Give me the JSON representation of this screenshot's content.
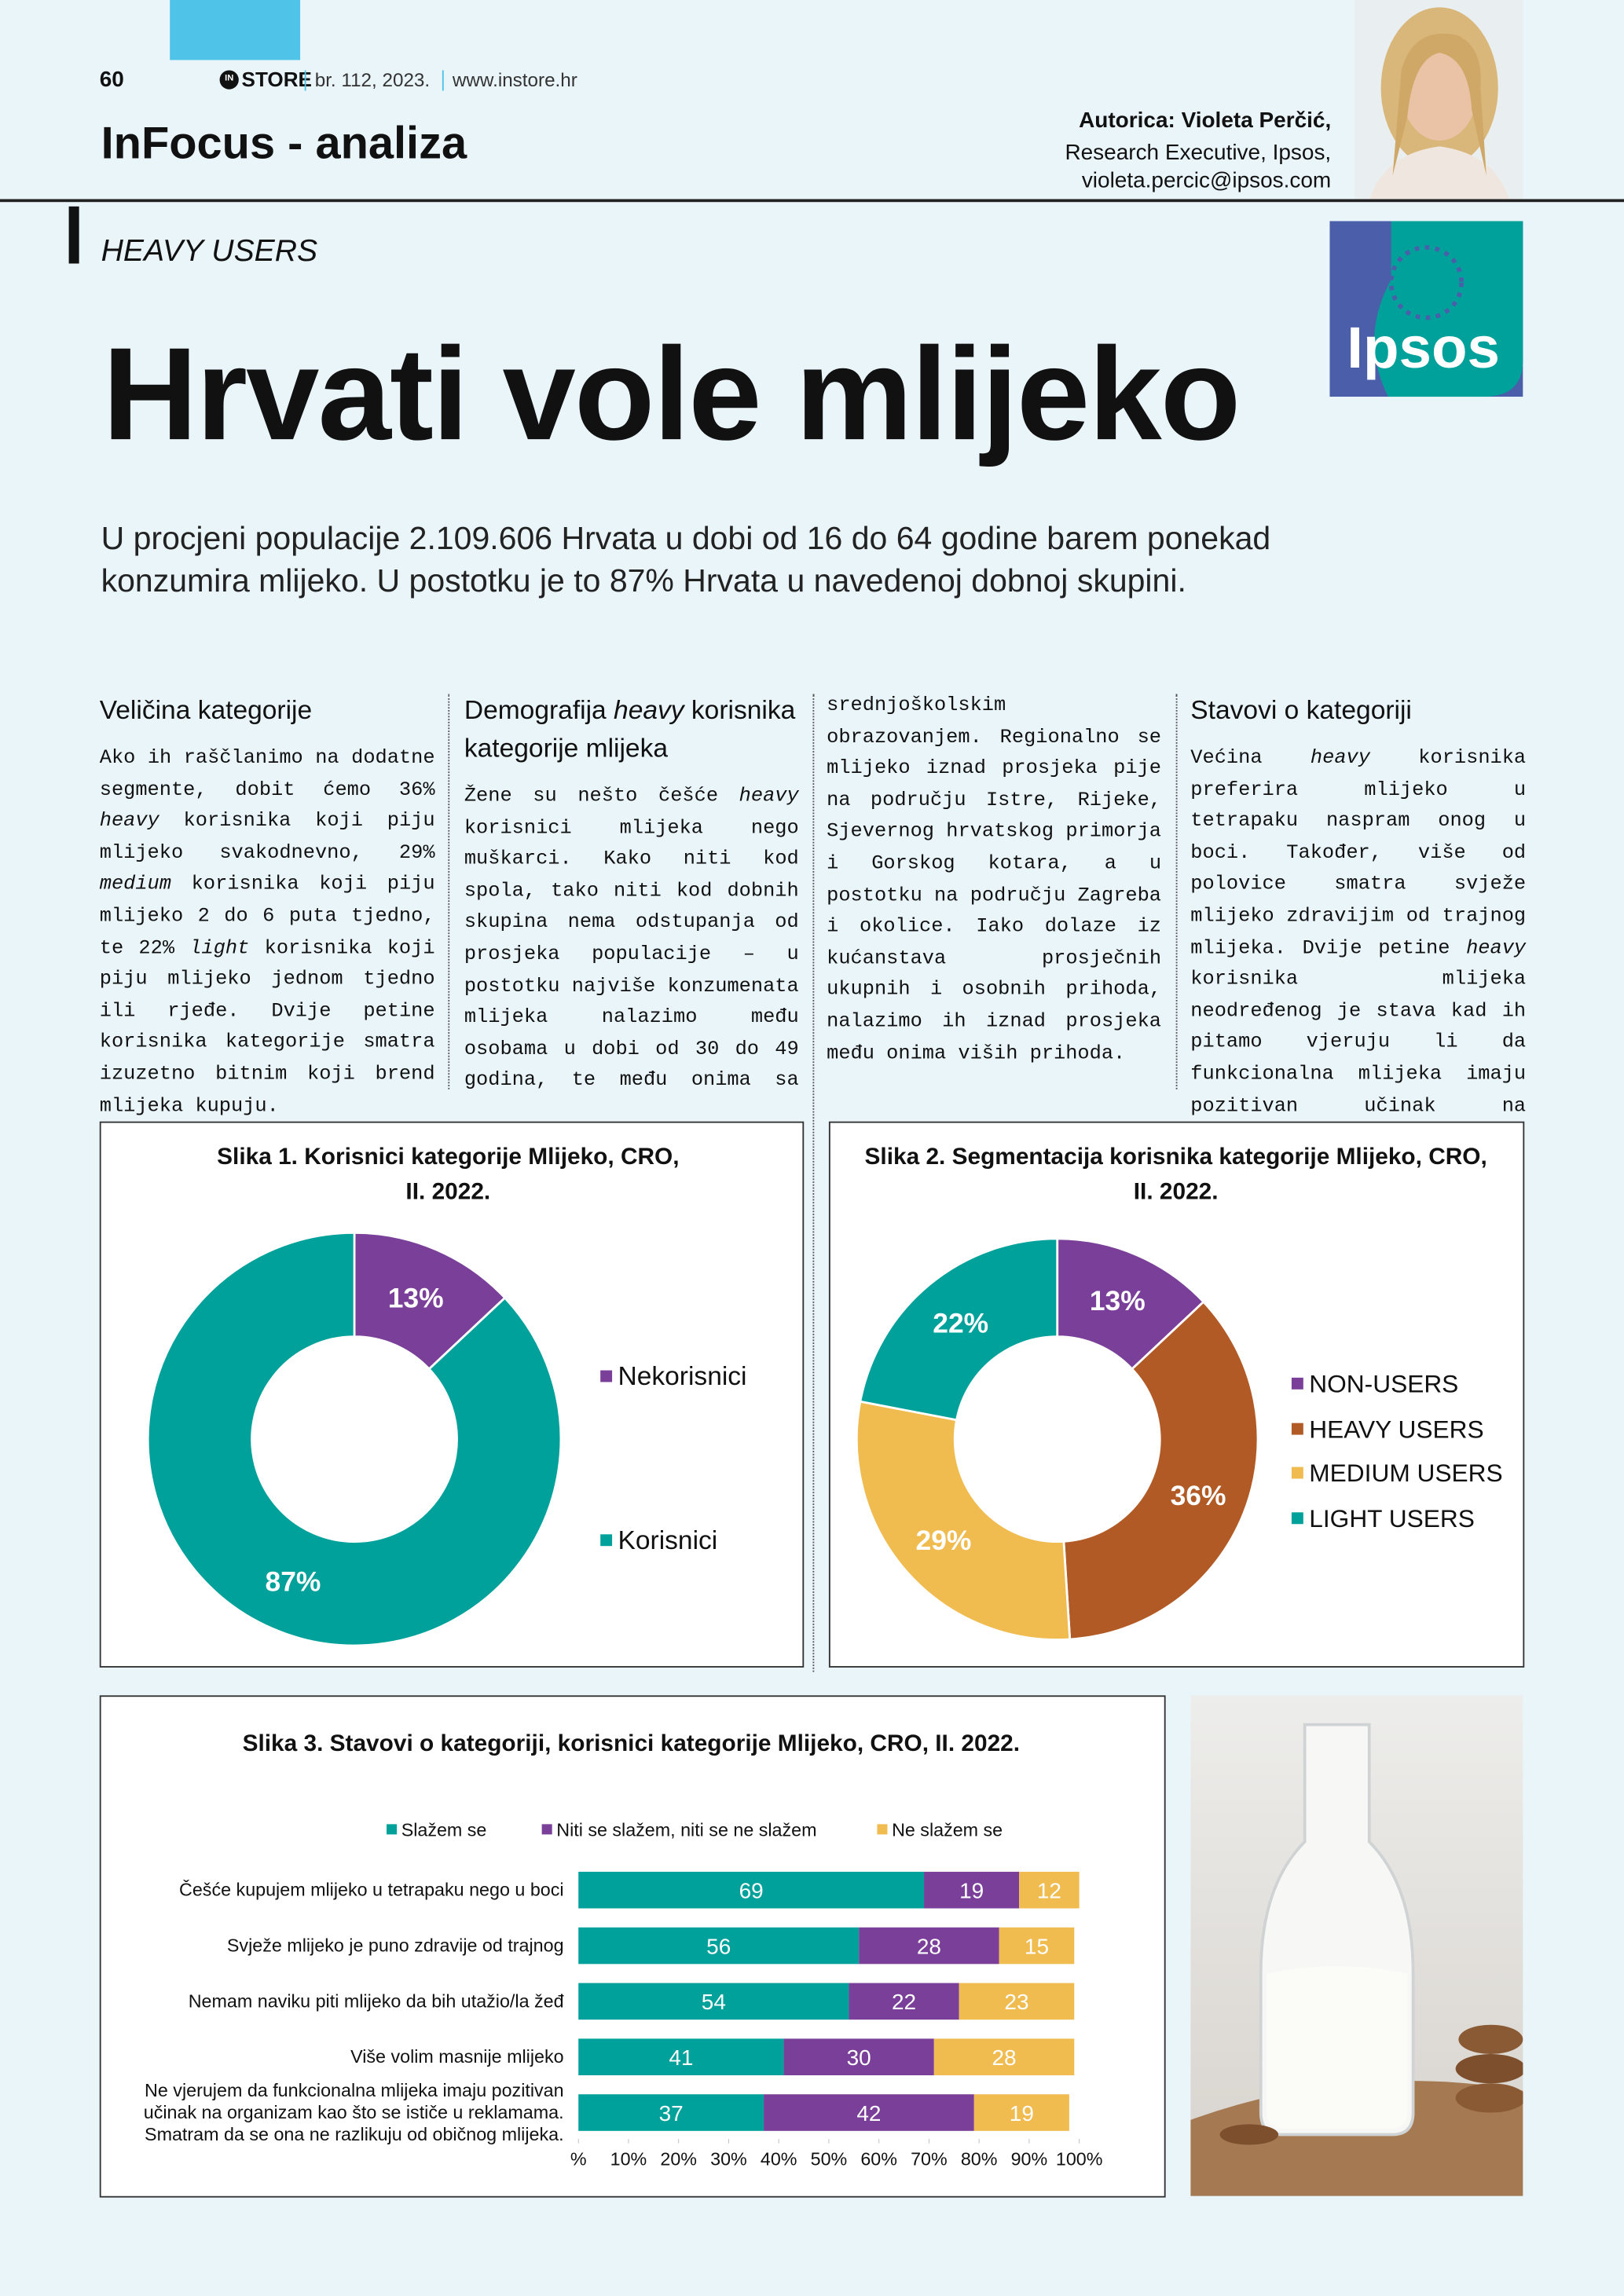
{
  "header": {
    "page_number": "60",
    "logo_badge": "IN",
    "logo": "STORE",
    "issue": "br. 112, 2023.",
    "website": "www.instore.hr",
    "section": "InFocus - analiza"
  },
  "author": {
    "name": "Autorica: Violeta Perčić,",
    "role": "Research Executive, Ipsos,",
    "email": "violeta.percic@ipsos.com"
  },
  "ipsos_logo": "Ipsos",
  "kicker": "HEAVY USERS",
  "title": "Hrvati vole mlijeko",
  "lead": "U procjeni populacije 2.109.606 Hrvata u dobi od 16 do 64 godine barem ponekad konzumira mlijeko. U postotku je to 87% Hrvata u navedenoj dobnoj skupini.",
  "sections": [
    {
      "heading": [
        "Veličina kategorije"
      ],
      "body": [
        "Ako ih raščlanimo na dodatne segmente, dobit ćemo 36% ",
        {
          "text": "heavy",
          "italic": true
        },
        " korisnika koji piju mlijeko svakodnevno, 29% ",
        {
          "text": "medium",
          "italic": true
        },
        " korisnika koji piju mlijeko 2 do 6 puta tjedno, te 22% ",
        {
          "text": "light",
          "italic": true
        },
        " korisnika koji piju mlijeko jednom tjedno ili rjeđe. Dvije petine korisnika kategorije smatra izuzetno bitnim koji brend mlijeka kupuju."
      ]
    },
    {
      "heading": [
        "Demografija ",
        {
          "text": "heavy",
          "italic": true
        },
        " korisnika kategorije mlijeka"
      ],
      "body": [
        "Žene su nešto češće ",
        {
          "text": "heavy",
          "italic": true
        },
        " korisnici mlijeka nego muškarci. Kako niti kod spola, tako niti kod dobnih skupina nema odstupanja od prosjeka populacije – u postotku najviše konzumenata mlijeka nalazimo među osobama u dobi od 30 do 49 godina, te među onima sa srednjoškolskim obrazovanjem. Regionalno se mlijeko iznad prosjeka pije na području Istre, Rijeke, Sjevernog hrvatskog primorja i Gorskog kotara, a u postotku na području Zagreba i okolice. Iako dolaze iz kućanstava prosječnih ukupnih i osobnih prihoda, nalazimo ih iznad prosjeka među onima viših prihoda."
      ]
    },
    {
      "heading": [
        "Stavovi o kategoriji"
      ],
      "body": [
        "Većina ",
        {
          "text": "heavy",
          "italic": true
        },
        " korisnika preferira mlijeko u tetrapaku naspram onog u boci. Također, više od polovice smatra svježe mlijeko zdravijim od trajnog mlijeka. Dvije petine ",
        {
          "text": "heavy",
          "italic": true
        },
        " korisnika mlijeka neodređenog je stava kad ih pitamo vjeruju li da funkcionalna mlijeka imaju pozitivan učinak na organizam."
      ]
    }
  ],
  "chart_data": [
    {
      "type": "pie",
      "donut": true,
      "title": "Slika 1. Korisnici kategorije Mlijeko, CRO, II. 2022.",
      "categories": [
        "Nekorisnici",
        "Korisnici"
      ],
      "values": [
        13,
        87
      ],
      "value_labels": [
        "13%",
        "87%"
      ],
      "colors": [
        "#7a3f98",
        "#00a19a"
      ]
    },
    {
      "type": "pie",
      "donut": true,
      "title": "Slika 2. Segmentacija korisnika kategorije Mlijeko, CRO, II. 2022.",
      "categories": [
        "NON-USERS",
        "HEAVY USERS",
        "MEDIUM USERS",
        "LIGHT USERS"
      ],
      "values": [
        13,
        36,
        29,
        22
      ],
      "value_labels": [
        "13%",
        "36%",
        "29%",
        "22%"
      ],
      "colors": [
        "#7a3f98",
        "#b15a26",
        "#f0bb4f",
        "#00a19a"
      ]
    },
    {
      "type": "bar",
      "orientation": "horizontal",
      "stacked": true,
      "title": "Slika 3. Stavovi o kategoriji, korisnici kategorije Mlijeko, CRO, II. 2022.",
      "categories": [
        "Češće kupujem mlijeko u tetrapaku nego u boci",
        "Svježe mlijeko je puno zdravije od trajnog",
        "Nemam naviku piti mlijeko da bih utažio/la žeđ",
        "Više volim masnije mlijeko",
        "Ne vjerujem da funkcionalna mlijeka imaju pozitivan učinak na organizam kao što se ističe u reklamama. Smatram da se ona ne razlikuju od običnog mlijeka."
      ],
      "series": [
        {
          "name": "Slažem se",
          "color": "#00a19a",
          "values": [
            69,
            56,
            54,
            41,
            37
          ]
        },
        {
          "name": "Niti se slažem, niti se ne slažem",
          "color": "#7a3f98",
          "values": [
            19,
            28,
            22,
            30,
            42
          ]
        },
        {
          "name": "Ne slažem se",
          "color": "#f0bb4f",
          "values": [
            12,
            15,
            23,
            28,
            19
          ]
        }
      ],
      "xlim": [
        0,
        100
      ],
      "xticks": [
        {
          "value": 0,
          "label": "%"
        },
        {
          "value": 10,
          "label": "10%"
        },
        {
          "value": 20,
          "label": "20%"
        },
        {
          "value": 30,
          "label": "30%"
        },
        {
          "value": 40,
          "label": "40%"
        },
        {
          "value": 50,
          "label": "50%"
        },
        {
          "value": 60,
          "label": "60%"
        },
        {
          "value": 70,
          "label": "70%"
        },
        {
          "value": 80,
          "label": "80%"
        },
        {
          "value": 90,
          "label": "90%"
        },
        {
          "value": 100,
          "label": "100%"
        }
      ]
    }
  ]
}
